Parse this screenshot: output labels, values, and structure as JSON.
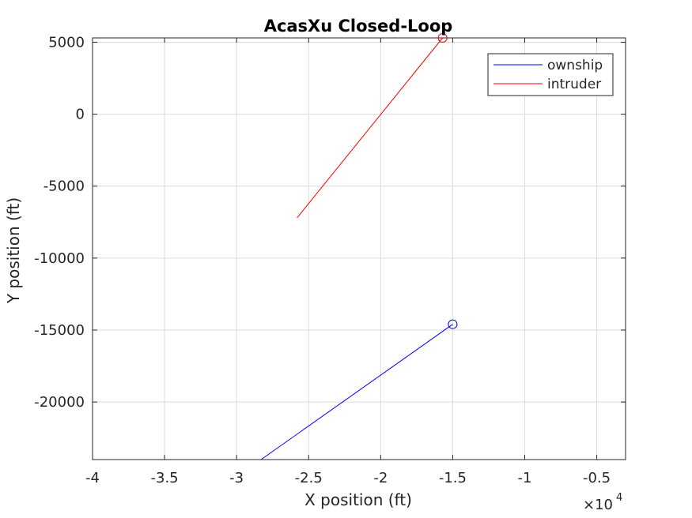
{
  "chart_data": {
    "type": "line",
    "title": "AcasXu Closed-Loop",
    "xlabel": "X position (ft)",
    "ylabel": "Y position (ft)",
    "x_exponent_base": "×10",
    "x_exponent_power": "4",
    "xlim": [
      -40000,
      -3000
    ],
    "ylim": [
      -24000,
      5300
    ],
    "xticks": [
      -40000,
      -35000,
      -30000,
      -25000,
      -20000,
      -15000,
      -10000,
      -5000
    ],
    "xtick_labels": [
      "-4",
      "-3.5",
      "-3",
      "-2.5",
      "-2",
      "-1.5",
      "-1",
      "-0.5"
    ],
    "yticks": [
      5000,
      0,
      -5000,
      -10000,
      -15000,
      -20000
    ],
    "ytick_labels": [
      "5000",
      "0",
      "-5000",
      "-10000",
      "-15000",
      "-20000"
    ],
    "grid": true,
    "legend_position": "top-right",
    "series": [
      {
        "name": "ownship",
        "color": "#0000ff",
        "x": [
          -28300,
          -15000
        ],
        "y": [
          -24000,
          -14600
        ],
        "marker_at_end": "circle"
      },
      {
        "name": "intruder",
        "color": "#ff0000",
        "x": [
          -25800,
          -15700
        ],
        "y": [
          -7200,
          5300
        ],
        "marker_at_end": "circle"
      }
    ]
  }
}
